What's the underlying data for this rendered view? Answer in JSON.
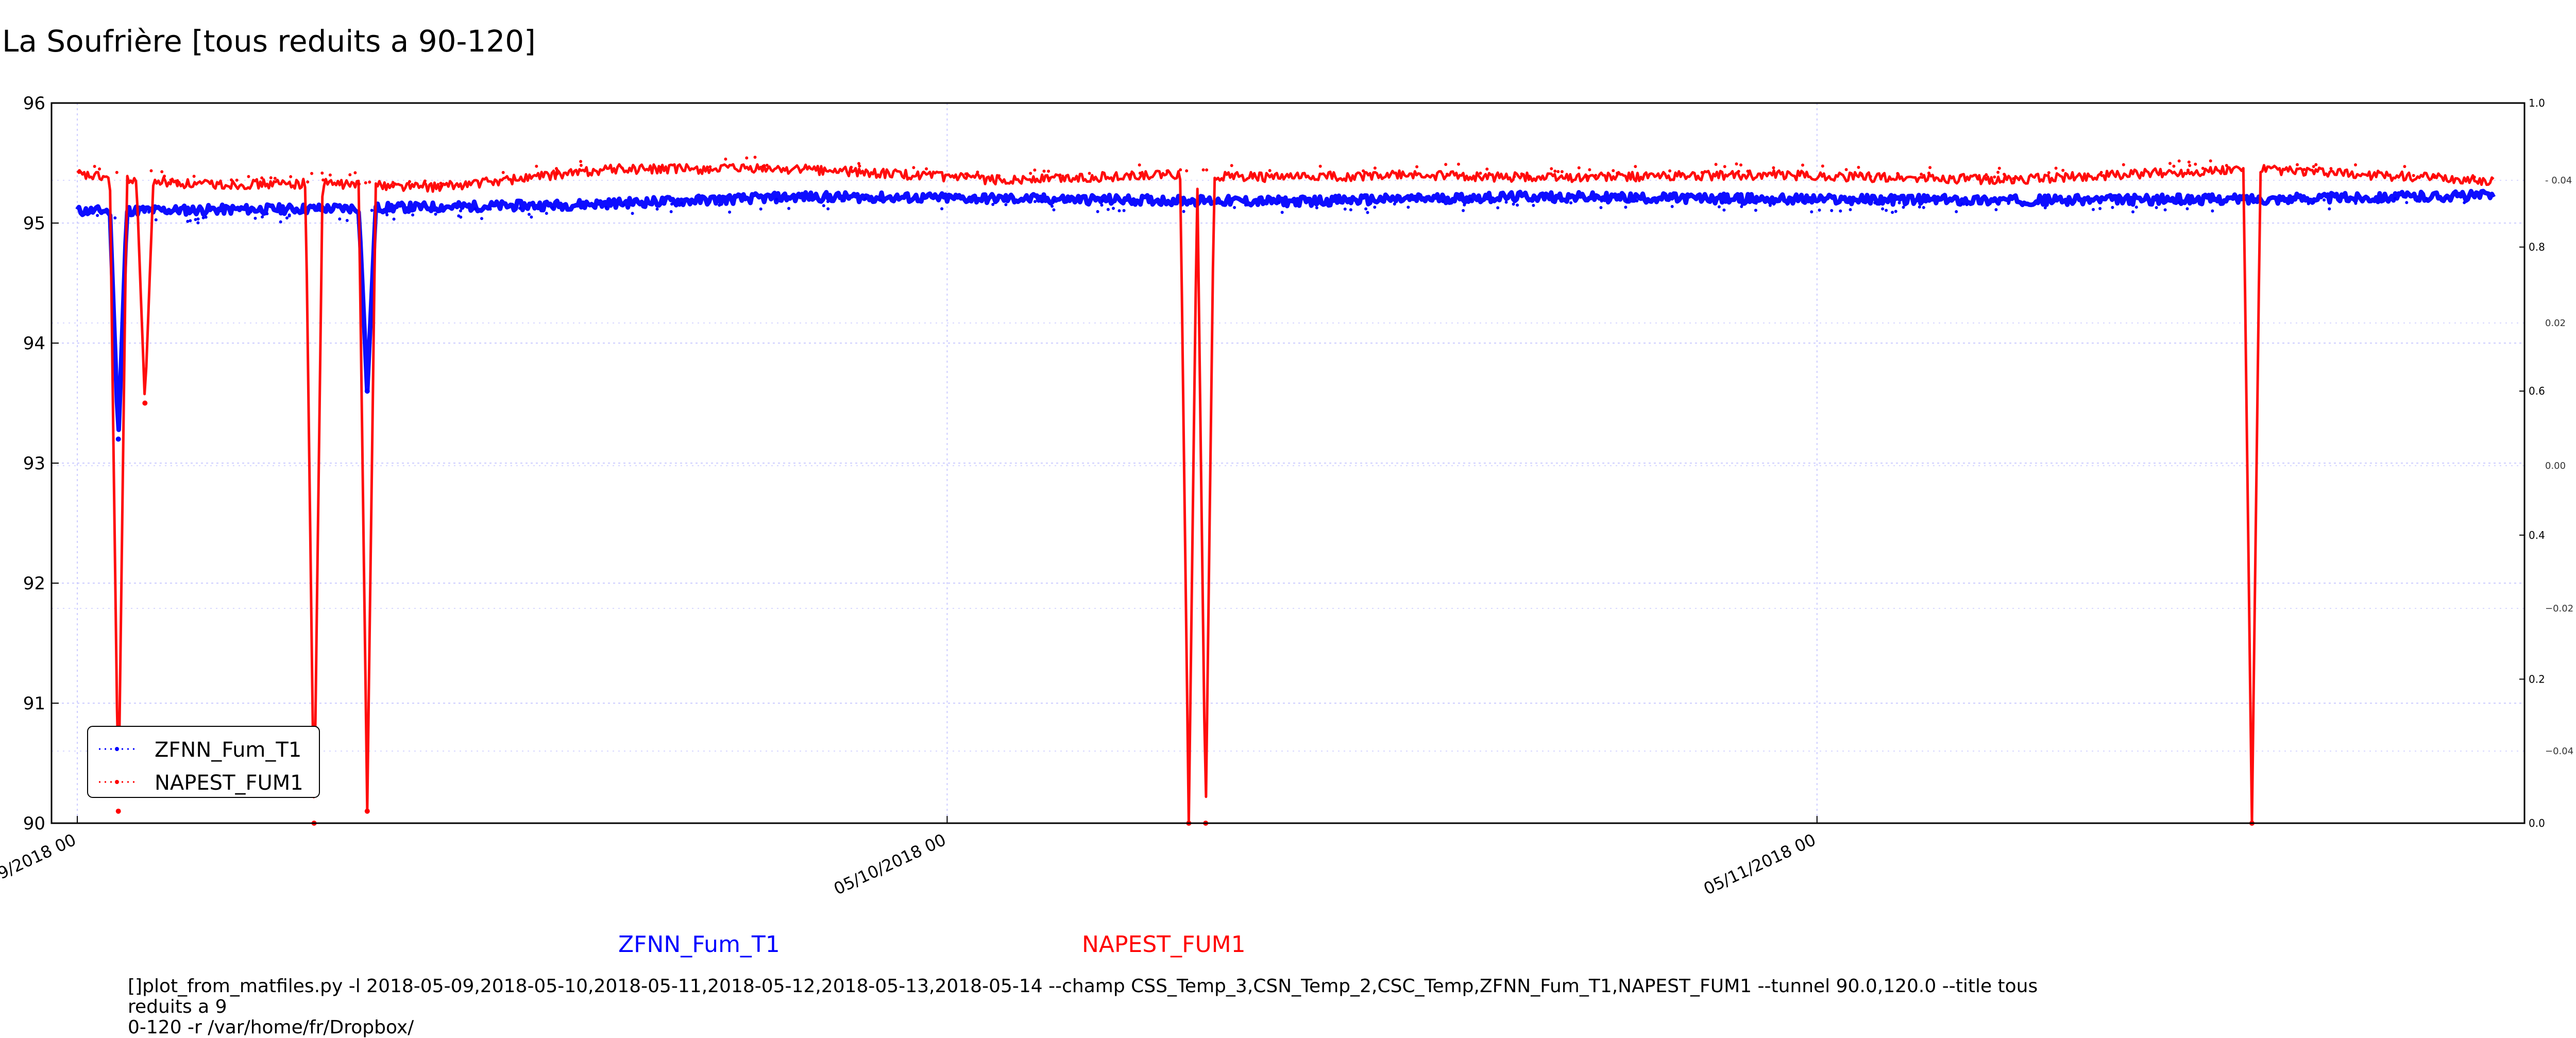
{
  "title": "La Soufrière [tous reduits a 90-120]",
  "chart_data": {
    "type": "line",
    "title": "La Soufrière [tous reduits a 90-120]",
    "xlabel": "",
    "ylabel": "",
    "x_ticks": [
      "09/2018 00",
      "05/10/2018 00",
      "05/11/2018 00"
    ],
    "x_ticks_note": "first tick label is clipped at the left edge of the figure",
    "y_ticks": [
      "90",
      "91",
      "92",
      "93",
      "94",
      "95",
      "96"
    ],
    "ylim": [
      90,
      96
    ],
    "xlim": [
      0,
      1.0
    ],
    "right_axis_ticks": [
      "0.0",
      "0.2",
      "0.4",
      "0.6",
      "0.8",
      "1.0"
    ],
    "right_axis_inner_ticks": [
      "- 0.04",
      "0.02",
      "0.00",
      "−0.02",
      "−0.04"
    ],
    "grid": true,
    "legend_position": "lower-left",
    "series": [
      {
        "name": "ZFNN_Fum_T1",
        "color": "#0000ff",
        "style": "dotted-markers",
        "baseline": [
          [
            0.0,
            95.1
          ],
          [
            0.1,
            95.12
          ],
          [
            0.2,
            95.15
          ],
          [
            0.3,
            95.22
          ],
          [
            0.4,
            95.2
          ],
          [
            0.5,
            95.18
          ],
          [
            0.6,
            95.22
          ],
          [
            0.7,
            95.2
          ],
          [
            0.8,
            95.19
          ],
          [
            0.9,
            95.2
          ],
          [
            1.0,
            95.23
          ]
        ],
        "dips": [
          [
            0.017,
            93.2
          ],
          [
            0.12,
            93.6
          ]
        ]
      },
      {
        "name": "NAPEST_FUM1",
        "color": "#ff0000",
        "style": "dotted-markers",
        "baseline": [
          [
            0.0,
            95.4
          ],
          [
            0.05,
            95.32
          ],
          [
            0.1,
            95.33
          ],
          [
            0.15,
            95.3
          ],
          [
            0.22,
            95.45
          ],
          [
            0.3,
            95.45
          ],
          [
            0.38,
            95.36
          ],
          [
            0.45,
            95.4
          ],
          [
            0.5,
            95.38
          ],
          [
            0.55,
            95.4
          ],
          [
            0.6,
            95.38
          ],
          [
            0.7,
            95.4
          ],
          [
            0.8,
            95.36
          ],
          [
            0.9,
            95.45
          ],
          [
            1.0,
            95.35
          ]
        ],
        "dips": [
          [
            0.017,
            90.1
          ],
          [
            0.028,
            93.5
          ],
          [
            0.098,
            90.0
          ],
          [
            0.12,
            90.1
          ],
          [
            0.46,
            90.0
          ],
          [
            0.467,
            90.0
          ],
          [
            0.9,
            90.0
          ]
        ]
      }
    ]
  },
  "legend": {
    "items": [
      {
        "label": "ZFNN_Fum_T1",
        "color": "#0000ff"
      },
      {
        "label": "NAPEST_FUM1",
        "color": "#ff0000"
      }
    ]
  },
  "footer": {
    "series_label_1": "ZFNN_Fum_T1",
    "series_label_1_color": "#0000ff",
    "series_label_2": "NAPEST_FUM1",
    "series_label_2_color": "#ff0000",
    "command_line": "[]plot_from_matfiles.py -l 2018-05-09,2018-05-10,2018-05-11,2018-05-12,2018-05-13,2018-05-14 --champ CSS_Temp_3,CSN_Temp_2,CSC_Temp,ZFNN_Fum_T1,NAPEST_FUM1 --tunnel 90.0,120.0 --title tous reduits a 9\n0-120 -r /var/home/fr/Dropbox/"
  }
}
